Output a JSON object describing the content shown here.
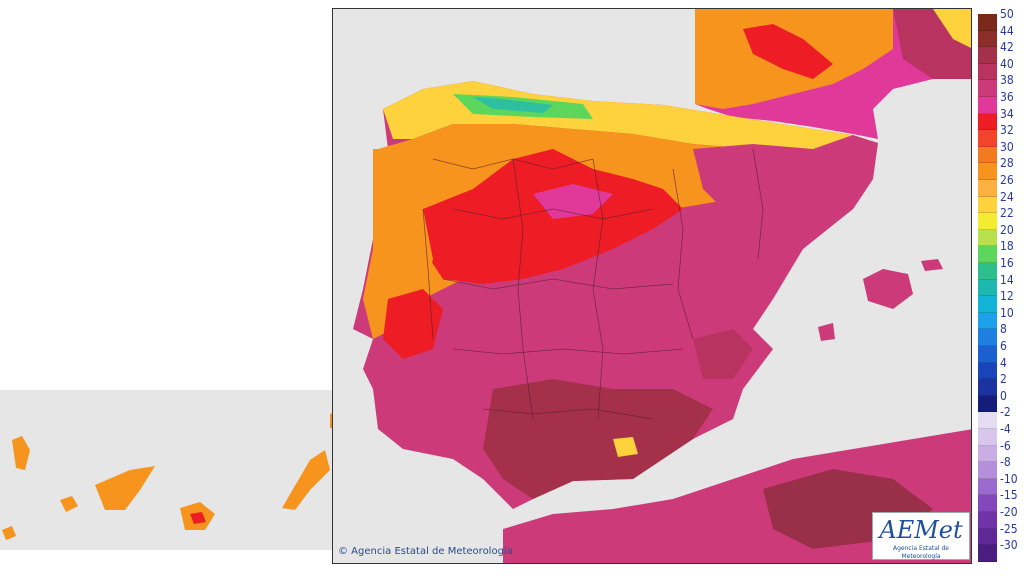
{
  "credit": "© Agencia Estatal de Meteorología",
  "logo": {
    "text": "AEMet",
    "subtitle": "Agencia Estatal de Meteorología"
  },
  "legend": [
    {
      "label": "50",
      "color": "#7a2a1a"
    },
    {
      "label": "44",
      "color": "#8c2e2a"
    },
    {
      "label": "42",
      "color": "#a4304a"
    },
    {
      "label": "40",
      "color": "#b8335f"
    },
    {
      "label": "38",
      "color": "#cc3a7a"
    },
    {
      "label": "36",
      "color": "#e0399a"
    },
    {
      "label": "34",
      "color": "#ee1c24"
    },
    {
      "label": "32",
      "color": "#f2442a"
    },
    {
      "label": "30",
      "color": "#f47a20"
    },
    {
      "label": "28",
      "color": "#f7941d"
    },
    {
      "label": "26",
      "color": "#fbb040"
    },
    {
      "label": "24",
      "color": "#fdd23c"
    },
    {
      "label": "22",
      "color": "#f4ec30"
    },
    {
      "label": "20",
      "color": "#b8e04a"
    },
    {
      "label": "18",
      "color": "#5cd65c"
    },
    {
      "label": "16",
      "color": "#2dbf8c"
    },
    {
      "label": "14",
      "color": "#1fb8b0"
    },
    {
      "label": "12",
      "color": "#12b4d8"
    },
    {
      "label": "10",
      "color": "#1ea0ea"
    },
    {
      "label": "8",
      "color": "#1e7fe0"
    },
    {
      "label": "6",
      "color": "#1c5fd0"
    },
    {
      "label": "4",
      "color": "#1a45b8"
    },
    {
      "label": "2",
      "color": "#1a33a0"
    },
    {
      "label": "0",
      "color": "#141e7a"
    },
    {
      "label": "-2",
      "color": "#e6dcf2"
    },
    {
      "label": "-4",
      "color": "#d9c6ec"
    },
    {
      "label": "-6",
      "color": "#c9ade4"
    },
    {
      "label": "-8",
      "color": "#b590da"
    },
    {
      "label": "-10",
      "color": "#9a6acc"
    },
    {
      "label": "-15",
      "color": "#8448bc"
    },
    {
      "label": "-20",
      "color": "#7034a8"
    },
    {
      "label": "-25",
      "color": "#5e2896"
    },
    {
      "label": "-30",
      "color": "#4a1e80"
    }
  ],
  "colors": {
    "sea": "#e6e6e6",
    "hot_dark": "#9a2f4a",
    "hot": "#cc3366",
    "very_hot": "#c7306a",
    "red": "#ee1c24",
    "orange": "#f7941d",
    "yellow": "#fdd23c",
    "green": "#5cd65c",
    "cyan": "#2dbfa0"
  }
}
